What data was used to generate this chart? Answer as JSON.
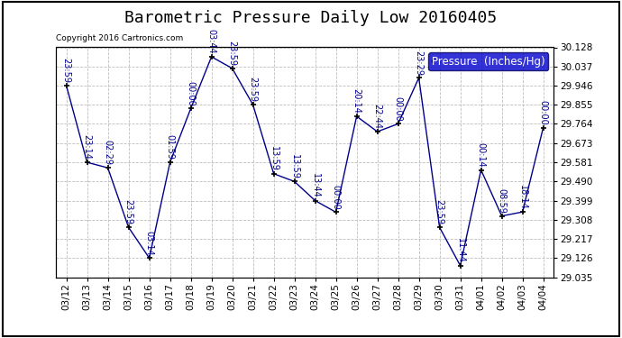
{
  "title": "Barometric Pressure Daily Low 20160405",
  "copyright": "Copyright 2016 Cartronics.com",
  "legend_label": "Pressure  (Inches/Hg)",
  "background_color": "#ffffff",
  "line_color": "#00008B",
  "marker_color": "#000000",
  "grid_color": "#bebebe",
  "dates": [
    "03/12",
    "03/13",
    "03/14",
    "03/15",
    "03/16",
    "03/17",
    "03/18",
    "03/19",
    "03/20",
    "03/21",
    "03/22",
    "03/23",
    "03/24",
    "03/25",
    "03/26",
    "03/27",
    "03/28",
    "03/29",
    "03/30",
    "03/31",
    "04/01",
    "04/02",
    "04/03",
    "04/04"
  ],
  "values": [
    29.946,
    29.581,
    29.555,
    29.272,
    29.126,
    29.581,
    29.837,
    30.083,
    30.028,
    29.855,
    29.527,
    29.49,
    29.399,
    29.344,
    29.8,
    29.727,
    29.764,
    29.983,
    29.272,
    29.09,
    29.545,
    29.326,
    29.345,
    29.746
  ],
  "time_labels": [
    "23:59",
    "23:14",
    "02:29",
    "23:59",
    "03:14",
    "01:59",
    "00:00",
    "03:44",
    "23:59",
    "23:59",
    "13:59",
    "13:59",
    "13:44",
    "00:00",
    "20:14",
    "22:44",
    "00:00",
    "23:29",
    "23:59",
    "11:44",
    "00:14",
    "08:59",
    "18:14",
    "00:00"
  ],
  "ylim_min": 29.035,
  "ylim_max": 30.128,
  "yticks": [
    29.035,
    29.126,
    29.217,
    29.308,
    29.399,
    29.49,
    29.581,
    29.673,
    29.764,
    29.855,
    29.946,
    30.037,
    30.128
  ],
  "title_fontsize": 13,
  "label_fontsize": 7,
  "tick_fontsize": 7.5,
  "legend_fontsize": 8.5
}
